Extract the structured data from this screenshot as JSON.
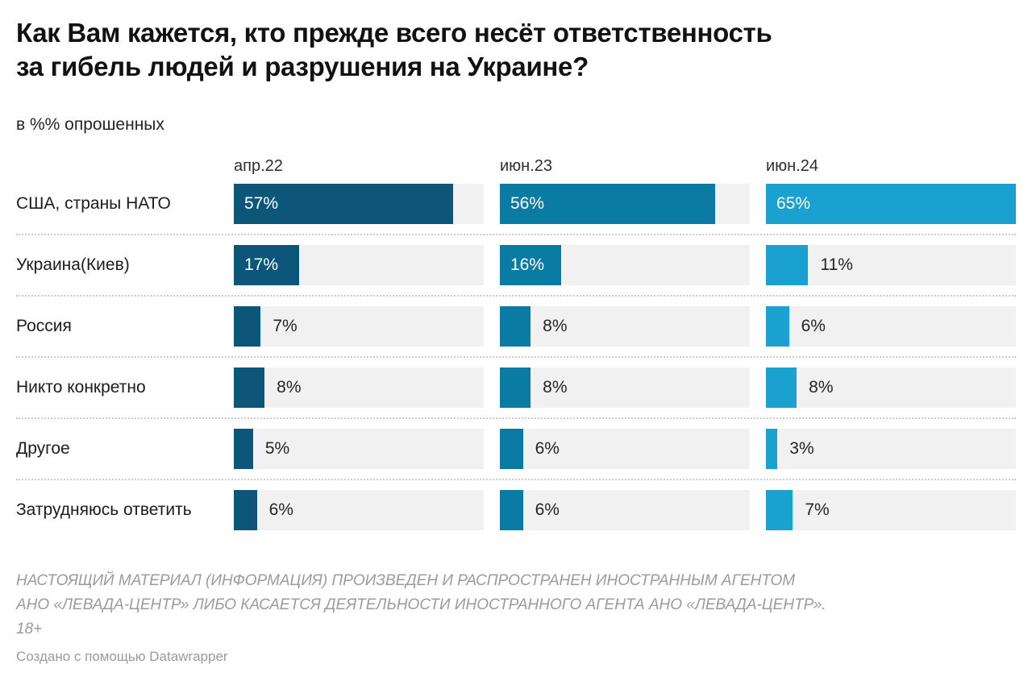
{
  "header": {
    "title_lines": [
      "Как Вам кажется, кто прежде всего несёт ответственность",
      "за гибель людей и разрушения на Украине?"
    ],
    "subtitle": "в %% опрошенных"
  },
  "chart_data": {
    "type": "bar",
    "orientation": "horizontal",
    "title": "Как Вам кажется, кто прежде всего несёт ответственность за гибель людей и разрушения на Украине?",
    "subtitle": "в %% опрошенных",
    "unit": "%",
    "categories": [
      "США, страны НАТО",
      "Украина(Киев)",
      "Россия",
      "Никто конкретно",
      "Другое",
      "Затрудняюсь ответить"
    ],
    "series": [
      {
        "name": "апр.22",
        "color": "#0d5679",
        "values": [
          57,
          17,
          7,
          8,
          5,
          6
        ]
      },
      {
        "name": "июн.23",
        "color": "#0a7ba2",
        "values": [
          56,
          16,
          8,
          8,
          6,
          6
        ]
      },
      {
        "name": "июн.24",
        "color": "#1aa1cf",
        "values": [
          65,
          11,
          6,
          8,
          3,
          7
        ]
      }
    ],
    "xlim": [
      0,
      65
    ],
    "grid": false,
    "legend_position": "column-headers",
    "track_color": "#f1f1f1",
    "inside_label_min_value": 16
  },
  "footer": {
    "disclaimer_lines": [
      "НАСТОЯЩИЙ МАТЕРИАЛ (ИНФОРМАЦИЯ) ПРОИЗВЕДЕН И РАСПРОСТРАНЕН ИНОСТРАННЫМ АГЕНТОМ",
      "АНО «ЛЕВАДА-ЦЕНТР» ЛИБО КАСАЕТСЯ ДЕЯТЕЛЬНОСТИ ИНОСТРАННОГО АГЕНТА АНО «ЛЕВАДА-ЦЕНТР».",
      "18+"
    ],
    "credit": "Создано с помощью Datawrapper"
  }
}
